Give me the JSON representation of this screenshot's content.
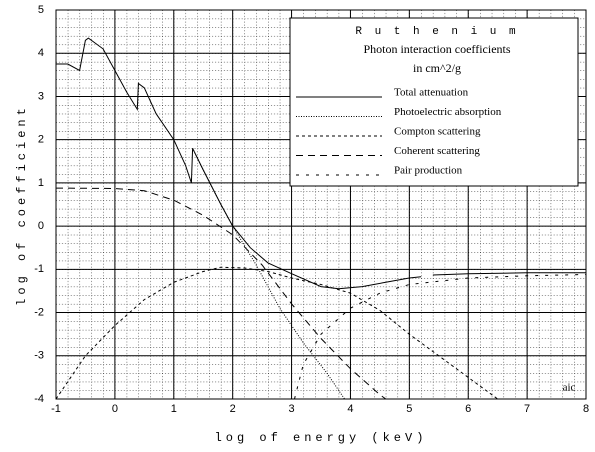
{
  "chart_data": {
    "type": "line",
    "legend_title": "R u t h e n i u m",
    "title": "Photon interaction coefficients",
    "subtitle": "in cm^2/g",
    "xlabel": "log of energy (keV)",
    "ylabel": "log of coefficient",
    "annotation": "aic",
    "xlim": [
      -1,
      8
    ],
    "ylim": [
      -4,
      5
    ],
    "xticks": [
      -1,
      0,
      1,
      2,
      3,
      4,
      5,
      6,
      7,
      8
    ],
    "yticks": [
      -4,
      -3,
      -2,
      -1,
      0,
      1,
      2,
      3,
      4,
      5
    ],
    "grid": true,
    "minor_grid": true,
    "legend": "upper right",
    "series": [
      {
        "name": "Total attenuation",
        "color": "#000000",
        "x": [
          -1,
          -0.8,
          -0.6,
          -0.5,
          -0.45,
          -0.2,
          0,
          0.2,
          0.38,
          0.4,
          0.5,
          0.7,
          1.0,
          1.2,
          1.3,
          1.32,
          1.5,
          1.8,
          2.0,
          2.3,
          2.6,
          3.0,
          3.5,
          3.8,
          4.2,
          4.6,
          5.0,
          5.2,
          5.3,
          5.4,
          6,
          7,
          8
        ],
        "values": [
          3.75,
          3.75,
          3.6,
          4.3,
          4.35,
          4.1,
          3.6,
          3.1,
          2.7,
          3.3,
          3.2,
          2.6,
          2.0,
          1.4,
          1.0,
          1.8,
          1.3,
          0.5,
          0.0,
          -0.5,
          -0.85,
          -1.1,
          -1.4,
          -1.45,
          -1.4,
          -1.3,
          -1.2,
          -1.17,
          null,
          -1.13,
          -1.1,
          -1.08,
          -1.08
        ]
      },
      {
        "name": "Photoelectric absorption",
        "color": "#000000",
        "x": [
          1.32,
          1.5,
          1.8,
          2.0,
          2.4,
          2.8,
          3.2,
          3.6,
          3.9
        ],
        "values": [
          1.8,
          1.3,
          0.5,
          0.0,
          -0.9,
          -1.9,
          -2.7,
          -3.4,
          -4.0
        ]
      },
      {
        "name": "Compton scattering",
        "color": "#000000",
        "x": [
          -1,
          -0.5,
          0,
          0.5,
          1.0,
          1.5,
          1.8,
          2.2,
          2.6,
          3.0,
          3.5,
          4.0,
          4.5,
          5.0,
          5.5,
          6.0,
          6.5
        ],
        "values": [
          -4.0,
          -3.0,
          -2.3,
          -1.7,
          -1.3,
          -1.05,
          -0.95,
          -0.97,
          -1.05,
          -1.2,
          -1.35,
          -1.55,
          -1.95,
          -2.5,
          -3.0,
          -3.5,
          -4.0
        ]
      },
      {
        "name": "Coherent scattering",
        "color": "#000000",
        "x": [
          -1,
          0,
          0.5,
          1,
          1.5,
          2,
          2.5,
          3,
          3.5,
          4,
          4.5,
          4.6
        ],
        "values": [
          0.88,
          0.87,
          0.82,
          0.6,
          0.25,
          -0.2,
          -0.9,
          -1.8,
          -2.6,
          -3.3,
          -3.9,
          -4.0
        ]
      },
      {
        "name": "Pair production",
        "color": "#000000",
        "x": [
          3.05,
          3.2,
          3.5,
          4,
          4.5,
          5,
          6,
          7,
          8
        ],
        "values": [
          -4.0,
          -3.2,
          -2.5,
          -1.9,
          -1.55,
          -1.35,
          -1.2,
          -1.15,
          -1.12
        ]
      }
    ]
  }
}
